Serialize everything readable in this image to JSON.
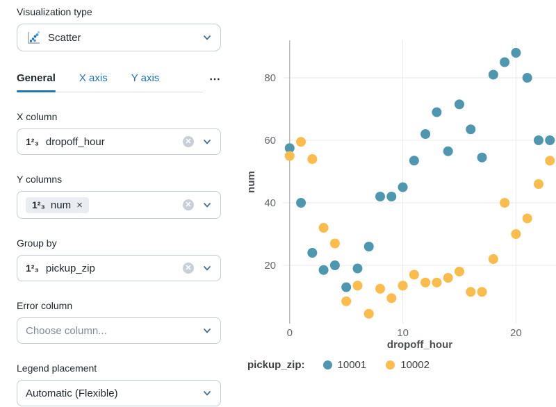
{
  "panel": {
    "visualization_type": {
      "label": "Visualization type",
      "value": "Scatter"
    },
    "tabs": {
      "general": "General",
      "x_axis": "X axis",
      "y_axis": "Y axis",
      "more": "⋯"
    },
    "x_column": {
      "label": "X column",
      "value": "dropoff_hour"
    },
    "y_columns": {
      "label": "Y columns",
      "tag_value": "num",
      "tag_remove": "×"
    },
    "group_by": {
      "label": "Group by",
      "value": "pickup_zip"
    },
    "error_column": {
      "label": "Error column",
      "placeholder": "Choose column..."
    },
    "legend_placement": {
      "label": "Legend placement",
      "value": "Automatic (Flexible)"
    },
    "icons": {
      "number_glyph": "1²₃",
      "clear_glyph": "✕"
    }
  },
  "colors": {
    "series_blue": "#4E97AE",
    "series_yellow": "#F9BC4D",
    "tab_blue": "#2272B4",
    "grid": "#E9E9E9",
    "zero_line": "#B3B3B3",
    "tick_text": "#63676B",
    "axis_title": "#4B4F54"
  },
  "chart_data": {
    "type": "scatter",
    "xlabel": "dropoff_hour",
    "ylabel": "num",
    "legend_title": "pickup_zip:",
    "x_ticks": [
      0,
      10,
      20
    ],
    "y_ticks": [
      20,
      40,
      60,
      80
    ],
    "xlim": [
      -0.6,
      23.6
    ],
    "ylim": [
      0,
      92
    ],
    "x": [
      0,
      1,
      2,
      3,
      4,
      5,
      6,
      7,
      8,
      9,
      10,
      11,
      12,
      13,
      14,
      15,
      16,
      17,
      18,
      19,
      20,
      21,
      22,
      23
    ],
    "series": [
      {
        "name": "10001",
        "color": "#4E97AE",
        "values": [
          57.5,
          40,
          24,
          18.5,
          20,
          13,
          19,
          26,
          42,
          42,
          45,
          53.5,
          62,
          69,
          56.5,
          71.5,
          63.5,
          54.5,
          81,
          85,
          88,
          80,
          60,
          60
        ]
      },
      {
        "name": "10002",
        "color": "#F9BC4D",
        "values": [
          55,
          59.5,
          54,
          32,
          27,
          8.5,
          13.5,
          4.5,
          12.5,
          9.5,
          13.5,
          17,
          14.5,
          14.5,
          16,
          18,
          11.5,
          11.5,
          22,
          40,
          30,
          35,
          46,
          53.5
        ]
      }
    ],
    "legend_position": "bottom",
    "grid": true
  }
}
